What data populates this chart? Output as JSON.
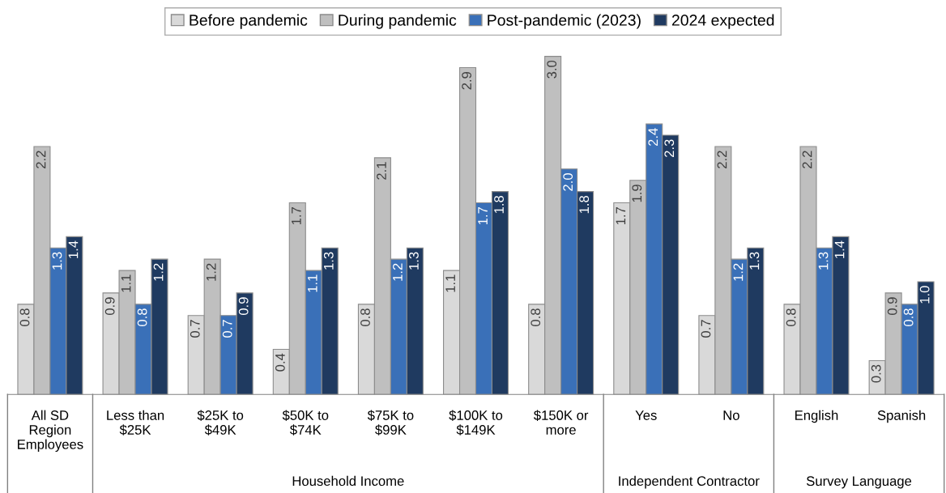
{
  "chart_data": {
    "type": "bar",
    "categories": [
      "All SD\nRegion\nEmployees",
      "Less than\n$25K",
      "$25K to\n$49K",
      "$50K to\n$74K",
      "$75K to\n$99K",
      "$100K to\n$149K",
      "$150K or\nmore",
      "Yes",
      "No",
      "English",
      "Spanish"
    ],
    "series": [
      {
        "name": "Before pandemic",
        "color": "#d9d9d9",
        "values": [
          0.8,
          0.9,
          0.7,
          0.4,
          0.8,
          1.1,
          0.8,
          1.7,
          0.7,
          0.8,
          0.3
        ],
        "value_labels": [
          "0.8",
          "0.9",
          "0.7",
          "0.4",
          "0.8",
          "1.1",
          "0.8",
          "1.7",
          "0.7",
          "0.8",
          "0.3"
        ]
      },
      {
        "name": "During pandemic",
        "color": "#bfbfbf",
        "values": [
          2.2,
          1.1,
          1.2,
          1.7,
          2.1,
          2.9,
          3.0,
          1.9,
          2.2,
          2.2,
          0.9
        ],
        "value_labels": [
          "2.2",
          "1.1",
          "1.2",
          "1.7",
          "2.1",
          "2.9",
          "3.0",
          "1.9",
          "2.2",
          "2.2",
          "0.9"
        ]
      },
      {
        "name": "Post-pandemic (2023)",
        "color": "#3a70b8",
        "values": [
          1.3,
          0.8,
          0.7,
          1.1,
          1.2,
          1.7,
          2.0,
          2.4,
          1.2,
          1.3,
          0.8
        ],
        "value_labels": [
          "1.3",
          "0.8",
          "0.7",
          "1.1",
          "1.2",
          "1.7",
          "2.0",
          "2.4",
          "1.2",
          "1.3",
          "0.8"
        ]
      },
      {
        "name": "2024 expected",
        "color": "#1f3a60",
        "values": [
          1.4,
          1.2,
          0.9,
          1.3,
          1.3,
          1.8,
          1.8,
          2.3,
          1.3,
          1.4,
          1.0
        ],
        "value_labels": [
          "1.4",
          "1.2",
          "0.9",
          "1.3",
          "1.3",
          "1.8",
          "1.8",
          "2.3",
          "1.3",
          "1.4",
          "1.0"
        ]
      }
    ],
    "legend": "top",
    "annotations": [
      "Household Income",
      "Independent Contractor",
      "Survey Language"
    ]
  }
}
